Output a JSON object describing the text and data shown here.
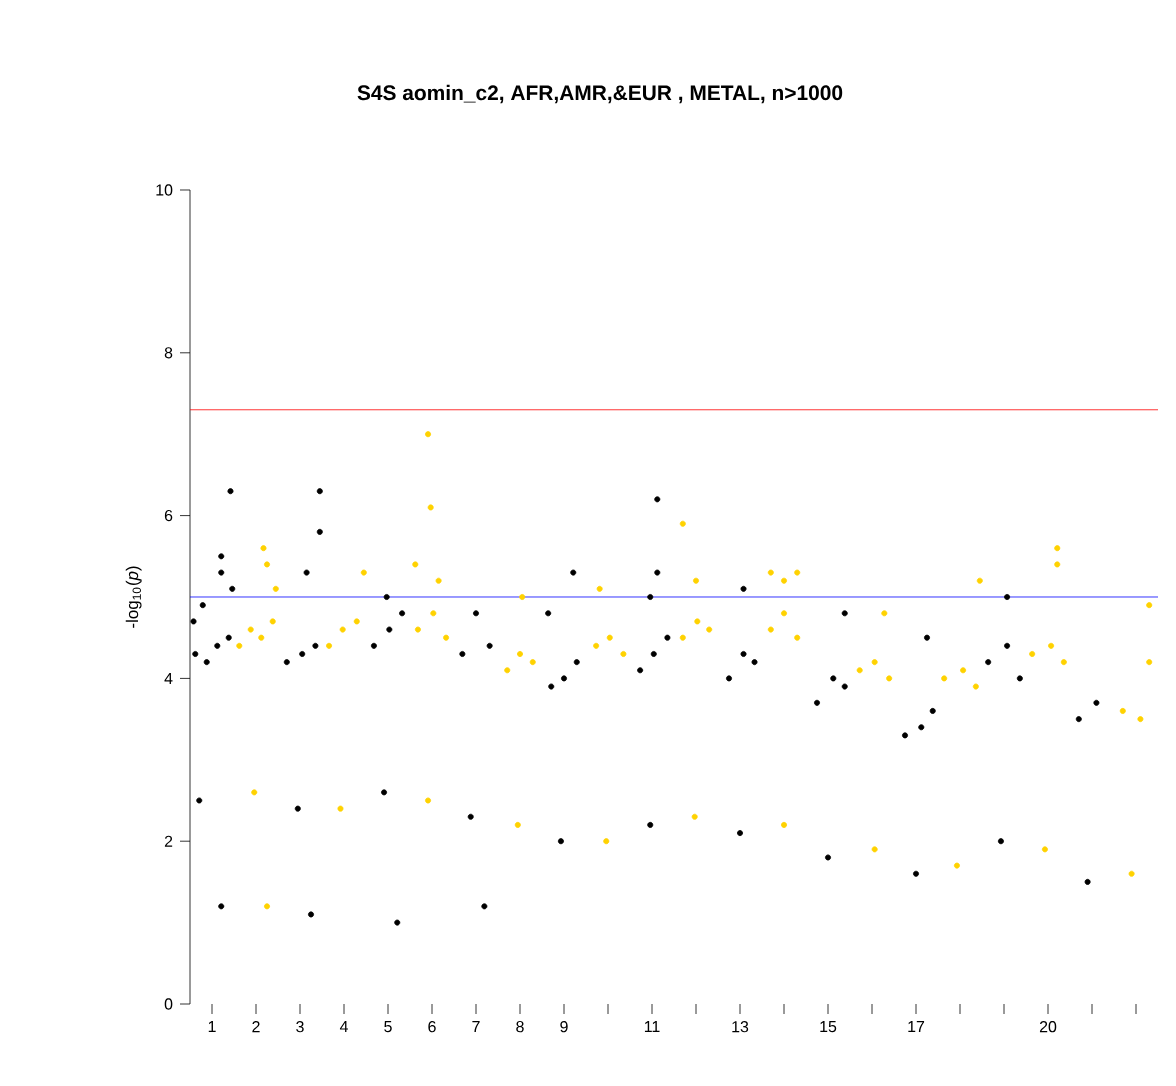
{
  "chart_data": {
    "type": "scatter",
    "title": "S4S aomin_c2, AFR,AMR,&EUR , METAL,  n>1000",
    "ylabel": "-log$_{10}$(*p*)",
    "marker": "circle",
    "xlim": [
      0.5,
      22.5
    ],
    "ylim": [
      0,
      10
    ],
    "yticks": [
      0,
      2,
      4,
      6,
      8,
      10
    ],
    "xticks": [
      1,
      2,
      3,
      4,
      5,
      6,
      7,
      8,
      9,
      {
        "value": 10,
        "label": null
      },
      11,
      {
        "value": 12,
        "label": null
      },
      13,
      {
        "value": 14,
        "label": null
      },
      15,
      {
        "value": 16,
        "label": null
      },
      17,
      {
        "value": 18,
        "label": null
      },
      {
        "value": 19,
        "label": null
      },
      20,
      {
        "value": 21,
        "label": null
      },
      {
        "value": 22,
        "label": null
      }
    ],
    "series": [
      {
        "color": "#000000",
        "x": [
          0.62,
          0.88,
          1.12,
          1.38,
          0.71,
          1.21,
          0.58,
          0.79,
          1.21,
          1.21,
          1.42,
          1.46,
          2.7,
          3.05,
          3.35,
          2.95,
          3.25,
          3.45,
          3.45,
          3.15,
          4.68,
          5.03,
          5.32,
          4.91,
          5.21,
          4.97,
          6.69,
          7.0,
          7.31,
          6.88,
          7.19,
          8.71,
          9.0,
          9.29,
          8.64,
          9.21,
          8.93,
          10.73,
          11.04,
          11.35,
          10.96,
          11.12,
          11.12,
          10.96,
          12.75,
          13.08,
          13.33,
          13.0,
          13.08,
          14.75,
          15.12,
          15.38,
          15.0,
          15.38,
          16.75,
          17.12,
          17.38,
          17.0,
          17.25,
          18.64,
          19.07,
          19.36,
          18.93,
          19.07,
          20.7,
          21.1,
          20.9
        ],
        "values": [
          4.3,
          4.2,
          4.4,
          4.5,
          2.5,
          1.2,
          4.7,
          4.9,
          5.5,
          5.3,
          6.3,
          5.1,
          4.2,
          4.3,
          4.4,
          2.4,
          1.1,
          6.3,
          5.8,
          5.3,
          4.4,
          4.6,
          4.8,
          2.6,
          1.0,
          5.0,
          4.3,
          4.8,
          4.4,
          2.3,
          1.2,
          3.9,
          4.0,
          4.2,
          4.8,
          5.3,
          2.0,
          4.1,
          4.3,
          4.5,
          2.2,
          6.2,
          5.3,
          5.0,
          4.0,
          4.3,
          4.2,
          2.1,
          5.1,
          3.7,
          4.0,
          3.9,
          1.8,
          4.8,
          3.3,
          3.4,
          3.6,
          1.6,
          4.5,
          4.2,
          4.4,
          4.0,
          2.0,
          5.0,
          3.5,
          3.7,
          1.5
        ]
      },
      {
        "color": "#ffd200",
        "x": [
          1.62,
          1.88,
          2.12,
          2.38,
          1.96,
          2.25,
          2.17,
          2.25,
          2.45,
          3.66,
          3.97,
          4.29,
          3.92,
          4.45,
          5.68,
          6.03,
          6.32,
          5.91,
          5.91,
          5.97,
          5.62,
          6.15,
          7.71,
          8.0,
          8.29,
          7.95,
          8.05,
          9.73,
          10.04,
          10.35,
          9.96,
          9.81,
          11.7,
          12.03,
          12.3,
          11.97,
          11.7,
          12.0,
          13.7,
          14.0,
          14.3,
          14.0,
          13.7,
          14.3,
          14.0,
          15.72,
          16.06,
          16.39,
          16.06,
          16.28,
          17.64,
          18.07,
          18.36,
          17.93,
          18.45,
          19.64,
          20.07,
          20.36,
          19.93,
          20.21,
          20.21,
          21.7,
          22.1,
          22.3,
          21.9,
          22.3
        ],
        "values": [
          4.4,
          4.6,
          4.5,
          4.7,
          2.6,
          1.2,
          5.6,
          5.4,
          5.1,
          4.4,
          4.6,
          4.7,
          2.4,
          5.3,
          4.6,
          4.8,
          4.5,
          2.5,
          7.0,
          6.1,
          5.4,
          5.2,
          4.1,
          4.3,
          4.2,
          2.2,
          5.0,
          4.4,
          4.5,
          4.3,
          2.0,
          5.1,
          4.5,
          4.7,
          4.6,
          2.3,
          5.9,
          5.2,
          4.6,
          4.8,
          4.5,
          2.2,
          5.3,
          5.3,
          5.2,
          4.1,
          4.2,
          4.0,
          1.9,
          4.8,
          4.0,
          4.1,
          3.9,
          1.7,
          5.2,
          4.3,
          4.4,
          4.2,
          1.9,
          5.6,
          5.4,
          3.6,
          3.5,
          4.2,
          1.6,
          4.9
        ]
      }
    ],
    "ref_lines": [
      {
        "axis": "y",
        "value": 7.3,
        "color": "#ff0000"
      },
      {
        "axis": "y",
        "value": 5,
        "color": "#0000ff"
      }
    ]
  }
}
